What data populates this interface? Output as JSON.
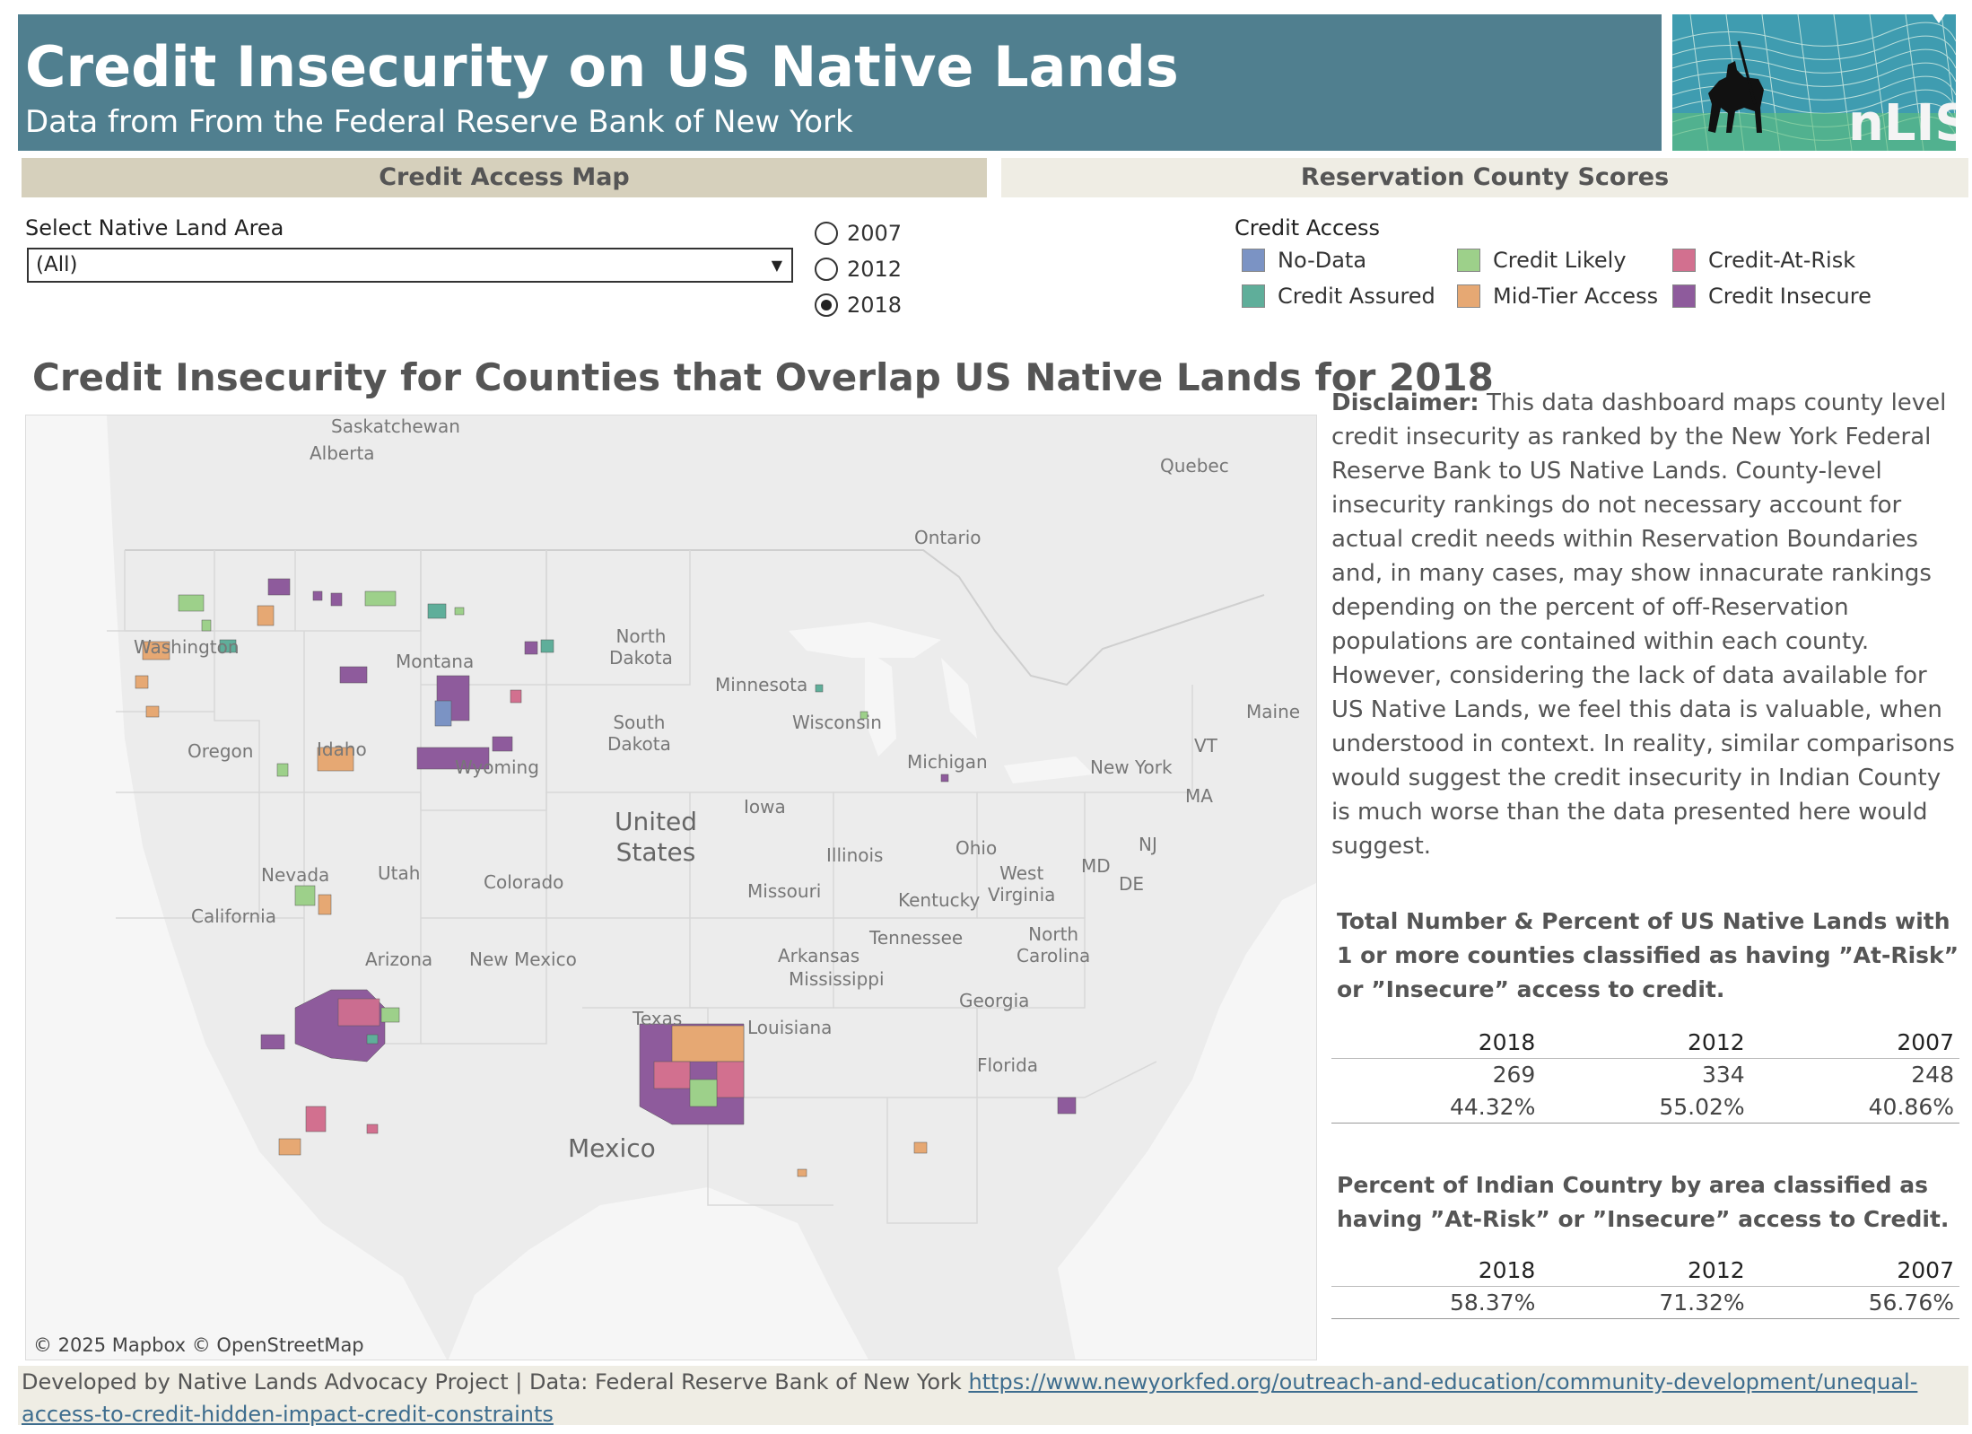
{
  "header": {
    "title": "Credit Insecurity on US Native Lands",
    "subtitle": "Data from From the Federal Reserve Bank of New York"
  },
  "logo": {
    "text": "nLIS"
  },
  "sections": {
    "map": "Credit Access Map",
    "reservation": "Reservation County Scores"
  },
  "filter": {
    "label": "Select Native Land Area",
    "value": "(All)"
  },
  "years": [
    {
      "label": "2007",
      "selected": false
    },
    {
      "label": "2012",
      "selected": false
    },
    {
      "label": "2018",
      "selected": true
    }
  ],
  "legend": {
    "title": "Credit Access",
    "items": [
      {
        "label": "No-Data",
        "color": "#7b93c4"
      },
      {
        "label": "Credit Likely",
        "color": "#9dd08a"
      },
      {
        "label": "Credit-At-Risk",
        "color": "#d2708f"
      },
      {
        "label": "Credit Assured",
        "color": "#5fae9a"
      },
      {
        "label": "Mid-Tier Access",
        "color": "#e6a873"
      },
      {
        "label": "Credit Insecure",
        "color": "#8e5b9c"
      }
    ]
  },
  "map": {
    "title": "Credit Insecurity for Counties that Overlap US Native Lands for 2018",
    "labels": {
      "alberta": "Alberta",
      "saskatchewan": "Saskatchewan",
      "quebec": "Quebec",
      "ontario": "Ontario",
      "washington": "Washington",
      "montana": "Montana",
      "north_dakota": "North\nDakota",
      "minnesota": "Minnesota",
      "oregon": "Oregon",
      "idaho": "Idaho",
      "wyoming": "Wyoming",
      "south_dakota": "South\nDakota",
      "wisconsin": "Wisconsin",
      "michigan": "Michigan",
      "maine": "Maine",
      "vt": "VT",
      "new_york": "New York",
      "ma": "MA",
      "iowa": "Iowa",
      "nevada": "Nevada",
      "utah": "Utah",
      "colorado": "Colorado",
      "united_states": "United\nStates",
      "illinois": "Illinois",
      "ohio": "Ohio",
      "nj": "NJ",
      "md": "MD",
      "de": "DE",
      "california": "California",
      "missouri": "Missouri",
      "west_virginia": "West\nVirginia",
      "kentucky": "Kentucky",
      "tennessee": "Tennessee",
      "north_carolina": "North\nCarolina",
      "arizona": "Arizona",
      "new_mexico": "New Mexico",
      "arkansas": "Arkansas",
      "mississippi": "Mississippi",
      "georgia": "Georgia",
      "texas": "Texas",
      "louisiana": "Louisiana",
      "florida": "Florida",
      "mexico": "Mexico"
    },
    "attribution": "© 2025 Mapbox  © OpenStreetMap"
  },
  "disclaimer": {
    "lead": "Disclaimer:",
    "text": " This data dashboard maps county level credit insecurity as ranked by the New York Federal Reserve Bank to US Native Lands. County-level insecurity rankings do not necessary account for actual credit needs within Reservation Boundaries and, in many cases, may show innacurate rankings depending on the percent of off-Reservation populations are contained within each county. However, considering the lack of data available for US Native Lands, we feel this data is valuable, when understood in context. In reality, similar comparisons would suggest the credit insecurity in Indian County is much worse than the data presented here would suggest."
  },
  "stats1": {
    "title": "Total Number & Percent of US Native Lands with 1 or more counties classified as having ”At-Risk” or ”Insecure” access to credit.",
    "headers": [
      "2018",
      "2012",
      "2007"
    ],
    "rows": [
      [
        "269",
        "334",
        "248"
      ],
      [
        "44.32%",
        "55.02%",
        "40.86%"
      ]
    ]
  },
  "stats2": {
    "title": "Percent of Indian Country by area classified as having ”At-Risk” or ”Insecure” access to Credit.",
    "headers": [
      "2018",
      "2012",
      "2007"
    ],
    "rows": [
      [
        "58.37%",
        "71.32%",
        "56.76%"
      ]
    ]
  },
  "footer": {
    "text": "Developed by Native Lands Advocacy Project | Data: Federal Reserve Bank of New York ",
    "link": "https://www.newyorkfed.org/outreach-and-education/community-development/unequal-access-to-credit-hidden-impact-credit-constraints"
  }
}
